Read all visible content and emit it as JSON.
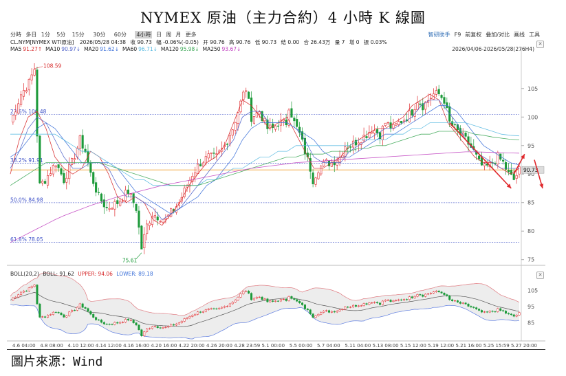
{
  "title": "NYMEX 原油（主力合約）4 小時 K 線圖",
  "source": "圖片來源：Wind",
  "toolbar": {
    "timeframes": [
      "分時",
      "多日",
      "1分",
      "5分",
      "15分",
      "30分",
      "60分",
      "4小時",
      "日",
      "周",
      "月",
      "更多"
    ],
    "active": "4小時",
    "tools": [
      "智研助手",
      "F9",
      "前复权",
      "叠加/对比",
      "画线",
      "工具"
    ]
  },
  "info": {
    "symbol": "CL.NYM[NYMEX WTI原油]",
    "datetime": "2026/05/28 04:38",
    "close": "收 90.73",
    "change": "幅 -0.06%(-0.05)",
    "open": "开 90.76",
    "high": "高 90.76",
    "low": "低 90.73",
    "settle": "结 0.00",
    "oi": "合 26.43万",
    "vol": "量 7",
    "inc": "增 0",
    "turnover": "振 0.03%",
    "date_range": "2026/04/06-2026/05/28(276H4)"
  },
  "ma_legend": [
    {
      "label": "MA5",
      "value": "91.27↑",
      "color": "#d62728"
    },
    {
      "label": "MA10",
      "value": "90.97↓",
      "color": "#4b5fc8"
    },
    {
      "label": "MA20",
      "value": "91.62↓",
      "color": "#3a6fd8"
    },
    {
      "label": "MA60",
      "value": "96.71↓",
      "color": "#55b8e0"
    },
    {
      "label": "MA120",
      "value": "95.98↓",
      "color": "#3aa654"
    },
    {
      "label": "MA250",
      "value": "93.67↓",
      "color": "#c040c0"
    }
  ],
  "boll": {
    "label": "BOLL(20,2)",
    "boll": "BOLL: 91.62",
    "upper": "UPPER: 94.06",
    "lower": "LOWER: 89.18",
    "yticks": [
      "105",
      "95",
      "85"
    ]
  },
  "last_price": "90.73",
  "colors": {
    "up": "#e0282c",
    "down": "#1d9a3a",
    "fib": "#3c50c8",
    "accent": "#2f6db5"
  },
  "chart_data": {
    "type": "candlestick",
    "ylim": [
      74,
      111
    ],
    "yticks": [
      105,
      100,
      95,
      90,
      85,
      80,
      75
    ],
    "x_tick_labels": [
      "4.6 04:00",
      "4.8 08:00",
      "4.10 12:00",
      "4.14 12:00",
      "4.16 16:00",
      "4.20 16:00",
      "4.22 20:00",
      "4.26 20:00",
      "4.28 23:59",
      "5.1 00:00",
      "5.5 00:00",
      "5.7 04:00",
      "5.11 04:00",
      "5.13 08:00",
      "5.15 12:00",
      "5.19 12:00",
      "5.21 16:00",
      "5.25 15:59",
      "5.27 20:00"
    ],
    "annotations": {
      "high": "108.59",
      "low": "75.61"
    },
    "fib_levels": [
      {
        "label": "23.6%",
        "value": 100.48
      },
      {
        "label": "38.2%",
        "value": 91.91
      },
      {
        "label": "50.0%",
        "value": 84.98
      },
      {
        "label": "61.8%",
        "value": 78.05
      }
    ],
    "horizontal_line": 90.73,
    "price_path": [
      [
        0,
        99
      ],
      [
        4,
        104
      ],
      [
        7,
        106
      ],
      [
        9,
        108.5
      ],
      [
        10,
        97
      ],
      [
        11,
        88
      ],
      [
        13,
        89
      ],
      [
        17,
        92
      ],
      [
        20,
        89
      ],
      [
        23,
        92
      ],
      [
        26,
        96
      ],
      [
        28,
        94
      ],
      [
        30,
        90
      ],
      [
        33,
        86
      ],
      [
        36,
        84
      ],
      [
        40,
        85
      ],
      [
        44,
        87
      ],
      [
        47,
        84
      ],
      [
        49,
        77
      ],
      [
        51,
        81
      ],
      [
        53,
        83
      ],
      [
        58,
        82
      ],
      [
        63,
        85
      ],
      [
        66,
        88
      ],
      [
        68,
        90
      ],
      [
        71,
        92
      ],
      [
        74,
        93
      ],
      [
        77,
        93
      ],
      [
        80,
        95
      ],
      [
        83,
        98
      ],
      [
        85,
        101
      ],
      [
        87,
        104
      ],
      [
        88,
        105
      ],
      [
        90,
        100
      ],
      [
        93,
        101
      ],
      [
        96,
        98
      ],
      [
        98,
        98
      ],
      [
        100,
        99
      ],
      [
        103,
        99
      ],
      [
        104,
        102
      ],
      [
        106,
        99
      ],
      [
        108,
        97
      ],
      [
        110,
        94
      ],
      [
        112,
        91
      ],
      [
        113,
        89
      ],
      [
        115,
        91
      ],
      [
        118,
        92
      ],
      [
        120,
        92
      ],
      [
        123,
        93
      ],
      [
        125,
        95
      ],
      [
        127,
        95
      ],
      [
        130,
        96
      ],
      [
        133,
        97
      ],
      [
        135,
        98
      ],
      [
        138,
        97
      ],
      [
        140,
        99
      ],
      [
        143,
        98
      ],
      [
        145,
        99
      ],
      [
        148,
        100
      ],
      [
        150,
        101
      ],
      [
        152,
        103
      ],
      [
        154,
        102
      ],
      [
        156,
        103
      ],
      [
        158,
        104
      ],
      [
        160,
        104
      ],
      [
        162,
        103
      ],
      [
        164,
        99
      ],
      [
        166,
        98
      ],
      [
        168,
        97
      ],
      [
        170,
        96
      ],
      [
        173,
        94
      ],
      [
        175,
        92
      ],
      [
        177,
        91
      ],
      [
        180,
        92
      ],
      [
        182,
        93
      ],
      [
        184,
        92
      ],
      [
        186,
        90
      ],
      [
        188,
        89
      ],
      [
        190,
        90.7
      ]
    ],
    "series": [
      {
        "name": "MA5",
        "values": [
          90,
          96,
          100,
          101,
          98,
          93,
          91,
          90,
          91,
          94,
          93,
          90,
          86,
          85,
          86,
          85,
          82,
          81,
          83,
          85,
          88,
          90,
          92,
          93,
          95,
          99,
          103,
          102,
          100,
          98,
          99,
          100,
          97,
          94,
          91,
          91,
          92,
          93,
          95,
          96,
          97,
          98,
          98,
          99,
          100,
          102,
          103,
          104,
          103,
          99,
          97,
          95,
          93,
          92,
          92,
          91,
          90,
          91
        ]
      },
      {
        "name": "MA10",
        "values": [
          91,
          94,
          98,
          100,
          99,
          96,
          93,
          91,
          91,
          92,
          92,
          91,
          88,
          86,
          86,
          85,
          84,
          82,
          83,
          84,
          86,
          88,
          90,
          92,
          94,
          96,
          100,
          101,
          101,
          99,
          99,
          99,
          98,
          96,
          93,
          92,
          92,
          92,
          94,
          95,
          96,
          97,
          98,
          98,
          99,
          100,
          102,
          103,
          103,
          101,
          99,
          96,
          94,
          93,
          92,
          91,
          91,
          91
        ]
      },
      {
        "name": "MA20",
        "values": [
          93,
          94,
          96,
          98,
          99,
          98,
          96,
          94,
          92,
          92,
          92,
          92,
          91,
          89,
          87,
          86,
          85,
          84,
          83,
          84,
          85,
          86,
          88,
          89,
          91,
          93,
          96,
          98,
          99,
          99,
          99,
          99,
          98,
          97,
          96,
          94,
          93,
          93,
          93,
          94,
          95,
          96,
          97,
          97,
          98,
          99,
          100,
          101,
          102,
          102,
          101,
          99,
          97,
          95,
          94,
          93,
          92,
          91.6
        ]
      },
      {
        "name": "MA60",
        "values": [
          97,
          97,
          97,
          97,
          97,
          97,
          96,
          95,
          94,
          94,
          93,
          92,
          91,
          90,
          89,
          89,
          88,
          88,
          88,
          88,
          88,
          88,
          89,
          89,
          90,
          91,
          91,
          92,
          93,
          93,
          94,
          94,
          95,
          95,
          95,
          95,
          95,
          95,
          95,
          96,
          96,
          96,
          96,
          97,
          97,
          98,
          98,
          99,
          99,
          99,
          99,
          99,
          98.5,
          98,
          97.5,
          97,
          96.8,
          96.7
        ]
      },
      {
        "name": "MA120",
        "values": [
          88,
          89,
          90,
          91,
          92,
          92,
          92,
          92,
          92,
          92,
          92,
          91.5,
          91,
          90.5,
          90,
          89.5,
          89,
          88.5,
          88,
          88,
          88,
          88,
          88.5,
          89,
          89.5,
          90,
          90.5,
          91,
          91.5,
          92,
          92.5,
          93,
          93,
          93.5,
          93.5,
          93.5,
          94,
          94,
          94,
          94.5,
          94.5,
          95,
          95,
          95.5,
          96,
          96.5,
          97,
          97,
          97.5,
          97.5,
          97.5,
          97.5,
          97,
          96.8,
          96.5,
          96.3,
          96.1,
          96
        ]
      },
      {
        "name": "MA250",
        "values": [
          78,
          78.8,
          79.6,
          80.4,
          81.2,
          82,
          82.7,
          83.3,
          83.9,
          84.5,
          85,
          85.5,
          86,
          86.4,
          86.8,
          87.2,
          87.6,
          88,
          88.3,
          88.6,
          88.9,
          89.2,
          89.5,
          89.8,
          90.1,
          90.4,
          90.7,
          91,
          91.2,
          91.4,
          91.6,
          91.8,
          92,
          92.1,
          92.2,
          92.3,
          92.4,
          92.5,
          92.6,
          92.7,
          92.8,
          92.9,
          93,
          93.1,
          93.2,
          93.3,
          93.4,
          93.5,
          93.6,
          93.7,
          93.8,
          93.9,
          93.9,
          93.85,
          93.8,
          93.75,
          93.7,
          93.67
        ]
      }
    ]
  }
}
